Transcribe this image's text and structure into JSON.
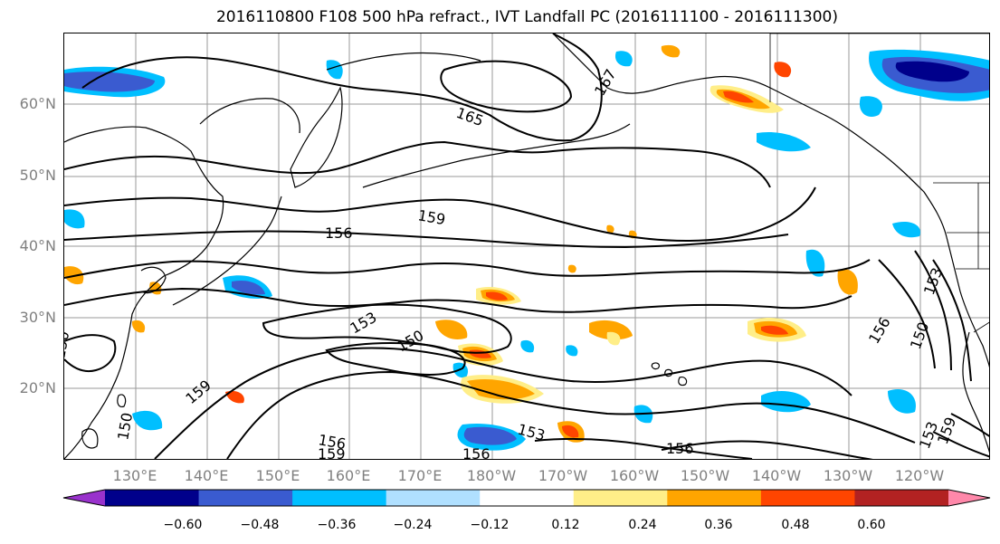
{
  "title": "2016110800 F108 500 hPa refract., IVT Landfall PC (2016111100 - 2016111300)",
  "map": {
    "lat_labels": [
      "60°N",
      "50°N",
      "40°N",
      "30°N",
      "20°N"
    ],
    "lon_labels": [
      "130°E",
      "140°E",
      "150°E",
      "160°E",
      "170°E",
      "180°W",
      "170°W",
      "160°W",
      "150°W",
      "140°W",
      "130°W",
      "120°W"
    ],
    "contour_labels": [
      "165",
      "167",
      "159",
      "156",
      "153",
      "150",
      "156",
      "159",
      "156",
      "159",
      "153",
      "150",
      "156",
      "150",
      "153",
      "150",
      "156",
      "153",
      "159"
    ],
    "colors": {
      "coast": "#000000",
      "grid": "#9a9a9a",
      "contour": "#000000"
    }
  },
  "colorbar": {
    "tick_labels": [
      "−0.60",
      "−0.48",
      "−0.36",
      "−0.24",
      "−0.12",
      "0.12",
      "0.24",
      "0.36",
      "0.48",
      "0.60"
    ],
    "colors": [
      "#9932cc",
      "#00008b",
      "#3a5bd0",
      "#00bfff",
      "#b0e0ff",
      "#ffffff",
      "#ffee88",
      "#ffa500",
      "#ff4500",
      "#b22222",
      "#ff88aa"
    ]
  }
}
